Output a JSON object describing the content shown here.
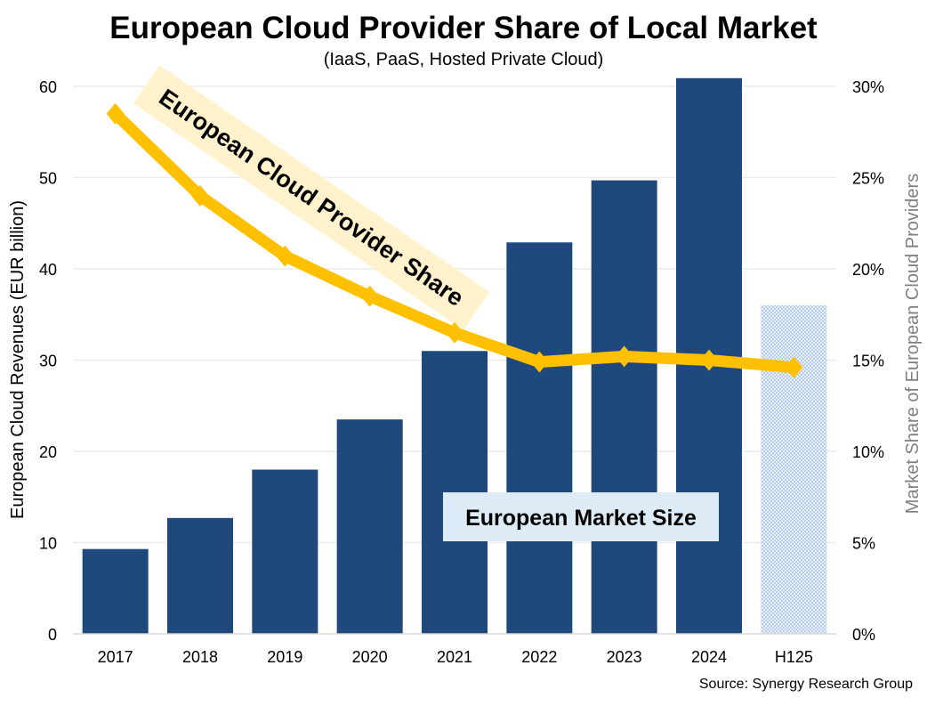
{
  "chart_data": {
    "type": "bar",
    "title": "European Cloud Provider Share of Local Market",
    "subtitle": "(IaaS, PaaS, Hosted Private Cloud)",
    "categories": [
      "2017",
      "2018",
      "2019",
      "2020",
      "2021",
      "2022",
      "2023",
      "2024",
      "H125"
    ],
    "series": [
      {
        "name": "European Market Size",
        "type": "bar",
        "axis": "left",
        "values": [
          9.3,
          12.7,
          18.0,
          23.5,
          31.0,
          42.9,
          49.7,
          60.9,
          36.0
        ],
        "color": "#1f497d",
        "partial_category_pattern": "H125"
      },
      {
        "name": "European Cloud Provider Share",
        "type": "line",
        "axis": "right",
        "values": [
          28.5,
          24.0,
          20.7,
          18.5,
          16.5,
          14.9,
          15.2,
          15.0,
          14.6
        ],
        "color": "#ffc000"
      }
    ],
    "ylabel": "European Cloud Revenues (EUR billion)",
    "ylabel_right": "Market Share of European Cloud Providers",
    "ylim": [
      0,
      60
    ],
    "yticks": [
      "0",
      "10",
      "20",
      "30",
      "40",
      "50",
      "60"
    ],
    "ylim_right": [
      0,
      30
    ],
    "yticks_right": [
      "0%",
      "5%",
      "10%",
      "15%",
      "20%",
      "25%",
      "30%"
    ],
    "grid": true,
    "annotations": [
      "European Cloud Provider Share",
      "European Market Size"
    ],
    "source": "Source: Synergy Research Group"
  }
}
